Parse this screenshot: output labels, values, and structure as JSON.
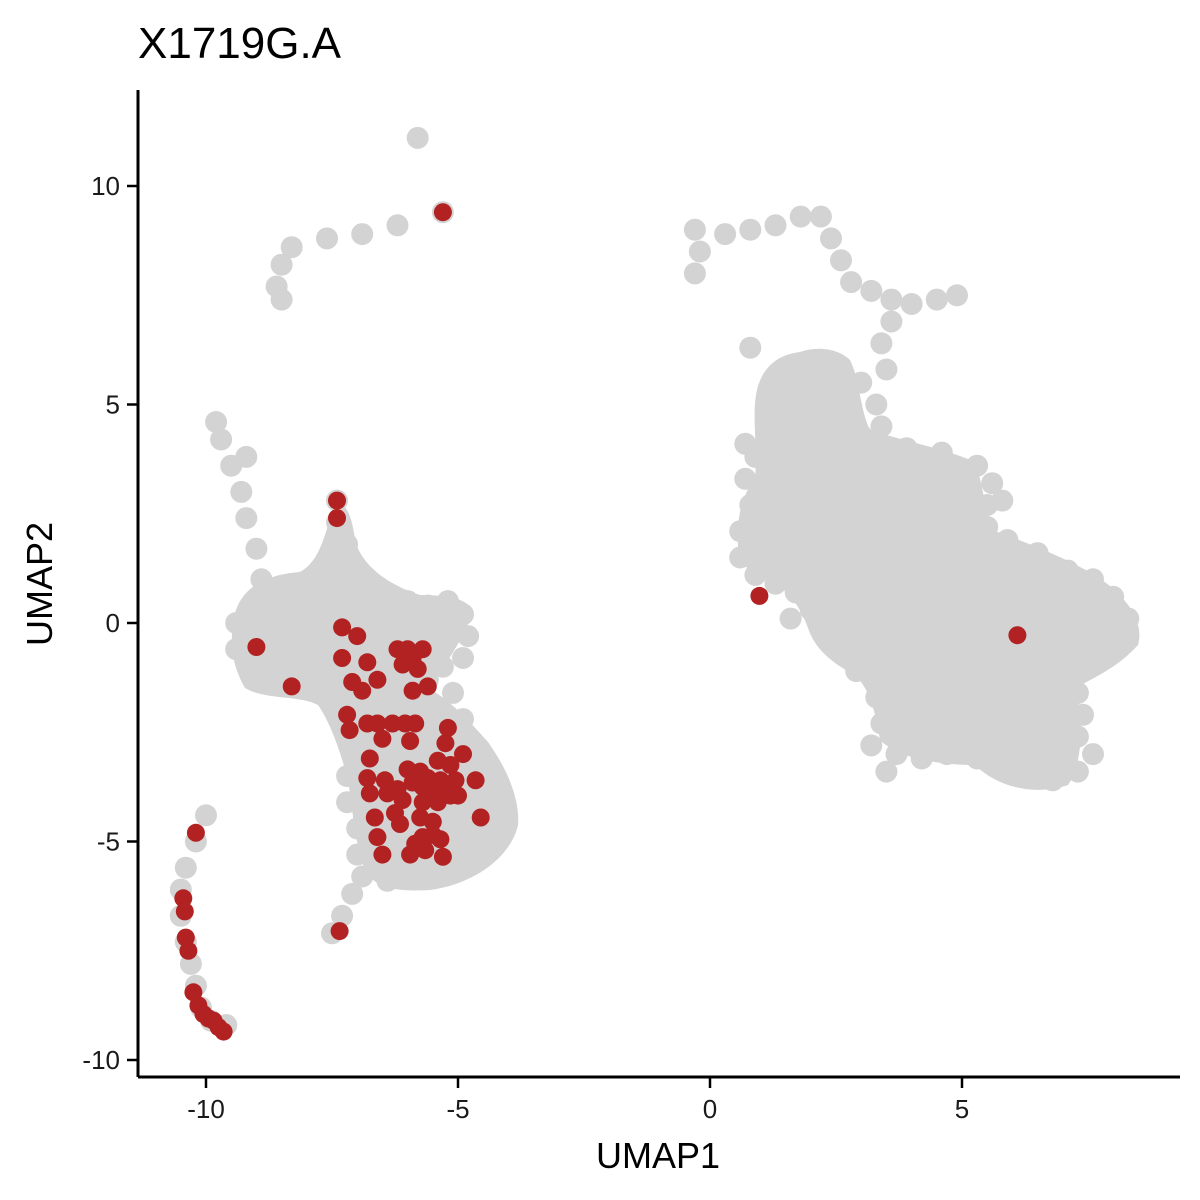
{
  "chart_data": {
    "type": "scatter",
    "title": "X1719G.A",
    "xlabel": "UMAP1",
    "ylabel": "UMAP2",
    "xlim": [
      -11.4,
      9.2
    ],
    "ylim": [
      -10.3,
      12.1
    ],
    "x_ticks": [
      -10,
      -5,
      0,
      5
    ],
    "x_tick_labels": [
      "-10",
      "-5",
      "0",
      "5"
    ],
    "y_ticks": [
      -10,
      -5,
      0,
      5,
      10
    ],
    "y_tick_labels": [
      "-10",
      "-5",
      "0",
      "5",
      "10"
    ],
    "grid": false,
    "legend": "none",
    "colors": {
      "background_cells": "#d3d3d3",
      "highlighted_cells": "#b22222"
    },
    "series": [
      {
        "role": "background",
        "points": [
          [
            -5.8,
            11.1
          ],
          [
            -5.3,
            9.4
          ],
          [
            -6.2,
            9.1
          ],
          [
            -6.9,
            8.9
          ],
          [
            -7.6,
            8.8
          ],
          [
            -8.3,
            8.6
          ],
          [
            -8.5,
            8.2
          ],
          [
            -8.6,
            7.7
          ],
          [
            -8.5,
            7.4
          ],
          [
            -9.8,
            4.6
          ],
          [
            -9.7,
            4.2
          ],
          [
            -9.5,
            3.6
          ],
          [
            -9.3,
            3.0
          ],
          [
            -9.2,
            2.4
          ],
          [
            -9.0,
            1.7
          ],
          [
            -8.9,
            1.0
          ],
          [
            -9.2,
            3.8
          ],
          [
            -7.4,
            2.8
          ],
          [
            -7.4,
            2.3
          ],
          [
            -7.2,
            1.8
          ],
          [
            -7.0,
            1.2
          ],
          [
            -7.0,
            0.6
          ],
          [
            -9.4,
            0.0
          ],
          [
            -9.4,
            -0.6
          ],
          [
            -9.0,
            0.2
          ],
          [
            -8.6,
            0.4
          ],
          [
            -8.3,
            -0.2
          ],
          [
            -8.0,
            0.4
          ],
          [
            -8.7,
            -1.2
          ],
          [
            -9.2,
            -0.9
          ],
          [
            -7.8,
            -0.9
          ],
          [
            -7.6,
            0.5
          ],
          [
            -7.2,
            -0.3
          ],
          [
            -6.8,
            0.4
          ],
          [
            -6.4,
            0.2
          ],
          [
            -6.0,
            0.5
          ],
          [
            -5.6,
            0.4
          ],
          [
            -5.2,
            0.5
          ],
          [
            -4.9,
            0.2
          ],
          [
            -4.8,
            -0.3
          ],
          [
            -4.9,
            -0.8
          ],
          [
            -5.3,
            -1.0
          ],
          [
            -5.6,
            -1.3
          ],
          [
            -5.1,
            -1.6
          ],
          [
            -4.9,
            -2.2
          ],
          [
            -5.0,
            -2.7
          ],
          [
            -5.2,
            -3.2
          ],
          [
            -4.9,
            -3.5
          ],
          [
            -4.7,
            -3.9
          ],
          [
            -4.4,
            -4.5
          ],
          [
            -4.7,
            -5.0
          ],
          [
            -4.9,
            -5.3
          ],
          [
            -5.4,
            -5.6
          ],
          [
            -5.9,
            -5.8
          ],
          [
            -6.4,
            -5.9
          ],
          [
            -6.9,
            -5.8
          ],
          [
            -7.0,
            -5.3
          ],
          [
            -7.0,
            -4.7
          ],
          [
            -7.2,
            -4.1
          ],
          [
            -7.2,
            -3.5
          ],
          [
            -7.1,
            -2.9
          ],
          [
            -7.2,
            -2.3
          ],
          [
            -7.4,
            -1.7
          ],
          [
            -6.5,
            -1.6
          ],
          [
            -6.2,
            -2.2
          ],
          [
            -6.4,
            -3.1
          ],
          [
            -6.1,
            -3.8
          ],
          [
            -6.2,
            -4.7
          ],
          [
            -5.5,
            -4.1
          ],
          [
            -5.7,
            -2.8
          ],
          [
            -6.7,
            -0.8
          ],
          [
            -6.1,
            -0.5
          ],
          [
            -6.6,
            -4.3
          ],
          [
            -5.9,
            -5.2
          ],
          [
            -5.3,
            -4.6
          ],
          [
            -6.8,
            -2.5
          ],
          [
            -5.6,
            -3.4
          ],
          [
            -7.1,
            -6.2
          ],
          [
            -7.3,
            -6.7
          ],
          [
            -7.5,
            -7.1
          ],
          [
            -10.0,
            -4.4
          ],
          [
            -10.2,
            -5.0
          ],
          [
            -10.4,
            -5.6
          ],
          [
            -10.5,
            -6.1
          ],
          [
            -10.5,
            -6.7
          ],
          [
            -10.4,
            -7.3
          ],
          [
            -10.3,
            -7.8
          ],
          [
            -10.2,
            -8.3
          ],
          [
            -10.1,
            -8.8
          ],
          [
            -9.9,
            -9.1
          ],
          [
            -9.6,
            -9.2
          ],
          [
            -0.3,
            8.0
          ],
          [
            -0.2,
            8.5
          ],
          [
            -0.3,
            9.0
          ],
          [
            0.3,
            8.9
          ],
          [
            0.8,
            9.0
          ],
          [
            1.3,
            9.1
          ],
          [
            1.8,
            9.3
          ],
          [
            2.2,
            9.3
          ],
          [
            2.4,
            8.8
          ],
          [
            2.6,
            8.3
          ],
          [
            2.8,
            7.8
          ],
          [
            3.2,
            7.6
          ],
          [
            3.6,
            7.4
          ],
          [
            4.0,
            7.3
          ],
          [
            4.5,
            7.4
          ],
          [
            4.9,
            7.5
          ],
          [
            3.6,
            6.9
          ],
          [
            3.4,
            6.4
          ],
          [
            3.5,
            5.8
          ],
          [
            3.0,
            5.5
          ],
          [
            2.5,
            5.9
          ],
          [
            2.0,
            5.8
          ],
          [
            1.8,
            5.2
          ],
          [
            1.5,
            4.8
          ],
          [
            1.2,
            4.4
          ],
          [
            0.8,
            6.3
          ],
          [
            0.9,
            3.8
          ],
          [
            0.7,
            3.3
          ],
          [
            1.3,
            3.5
          ],
          [
            1.8,
            4.0
          ],
          [
            2.3,
            4.6
          ],
          [
            3.0,
            4.3
          ],
          [
            3.9,
            4.0
          ],
          [
            4.6,
            3.9
          ],
          [
            5.3,
            3.6
          ],
          [
            5.6,
            3.2
          ],
          [
            5.8,
            2.8
          ],
          [
            5.5,
            2.2
          ],
          [
            5.9,
            1.9
          ],
          [
            6.5,
            1.6
          ],
          [
            7.1,
            1.2
          ],
          [
            7.6,
            1.0
          ],
          [
            8.0,
            0.6
          ],
          [
            8.3,
            0.1
          ],
          [
            8.2,
            -0.4
          ],
          [
            7.8,
            -0.8
          ],
          [
            7.4,
            -1.1
          ],
          [
            7.3,
            -1.6
          ],
          [
            7.4,
            -2.1
          ],
          [
            7.3,
            -2.6
          ],
          [
            7.6,
            -3.0
          ],
          [
            7.3,
            -3.4
          ],
          [
            6.8,
            -3.6
          ],
          [
            6.3,
            -3.5
          ],
          [
            5.8,
            -3.3
          ],
          [
            5.3,
            -3.1
          ],
          [
            4.7,
            -3.0
          ],
          [
            4.2,
            -3.1
          ],
          [
            3.7,
            -3.0
          ],
          [
            3.2,
            -2.8
          ],
          [
            3.4,
            -2.3
          ],
          [
            3.3,
            -1.7
          ],
          [
            2.9,
            -1.1
          ],
          [
            2.5,
            -0.6
          ],
          [
            2.2,
            -0.1
          ],
          [
            2.0,
            0.3
          ],
          [
            1.7,
            0.7
          ],
          [
            1.3,
            0.9
          ],
          [
            0.9,
            1.1
          ],
          [
            0.6,
            1.5
          ],
          [
            0.6,
            2.1
          ],
          [
            0.8,
            2.7
          ],
          [
            1.6,
            1.5
          ],
          [
            2.4,
            2.3
          ],
          [
            3.1,
            3.1
          ],
          [
            3.8,
            2.4
          ],
          [
            4.3,
            1.6
          ],
          [
            4.8,
            0.9
          ],
          [
            5.4,
            0.4
          ],
          [
            6.0,
            -0.1
          ],
          [
            6.6,
            -0.6
          ],
          [
            5.9,
            -1.3
          ],
          [
            5.2,
            -1.9
          ],
          [
            4.5,
            -2.4
          ],
          [
            3.8,
            -1.8
          ],
          [
            4.1,
            -0.9
          ],
          [
            3.4,
            -0.2
          ],
          [
            2.8,
            0.8
          ],
          [
            3.7,
            1.1
          ],
          [
            4.5,
            2.7
          ],
          [
            2.1,
            3.3
          ],
          [
            1.6,
            2.6
          ],
          [
            6.9,
            0.3
          ],
          [
            7.1,
            -0.3
          ],
          [
            1.6,
            0.1
          ],
          [
            3.3,
            5.0
          ],
          [
            3.4,
            4.5
          ],
          [
            2.6,
            3.9
          ],
          [
            0.7,
            4.1
          ],
          [
            5.5,
            2.7
          ],
          [
            3.5,
            -3.4
          ]
        ]
      },
      {
        "role": "highlight",
        "points": [
          [
            -5.3,
            9.4
          ],
          [
            -7.4,
            2.8
          ],
          [
            -7.4,
            2.4
          ],
          [
            -9.0,
            -0.55
          ],
          [
            -8.3,
            -1.45
          ],
          [
            -7.3,
            -0.1
          ],
          [
            -7.0,
            -0.3
          ],
          [
            -7.3,
            -0.8
          ],
          [
            -6.8,
            -0.9
          ],
          [
            -7.1,
            -1.35
          ],
          [
            -6.6,
            -1.3
          ],
          [
            -6.9,
            -1.55
          ],
          [
            -6.2,
            -0.6
          ],
          [
            -6.0,
            -0.6
          ],
          [
            -5.7,
            -0.6
          ],
          [
            -5.9,
            -0.8
          ],
          [
            -6.1,
            -0.95
          ],
          [
            -5.8,
            -1.05
          ],
          [
            -5.6,
            -1.45
          ],
          [
            -5.9,
            -1.55
          ],
          [
            -7.2,
            -2.1
          ],
          [
            -7.15,
            -2.45
          ],
          [
            -6.8,
            -2.3
          ],
          [
            -6.6,
            -2.3
          ],
          [
            -6.3,
            -2.3
          ],
          [
            -6.05,
            -2.3
          ],
          [
            -5.85,
            -2.3
          ],
          [
            -6.5,
            -2.65
          ],
          [
            -5.95,
            -2.7
          ],
          [
            -5.2,
            -2.4
          ],
          [
            -5.25,
            -2.75
          ],
          [
            -4.9,
            -3.0
          ],
          [
            -5.4,
            -3.15
          ],
          [
            -5.15,
            -3.25
          ],
          [
            -6.75,
            -3.1
          ],
          [
            -6.8,
            -3.55
          ],
          [
            -6.45,
            -3.6
          ],
          [
            -6.0,
            -3.35
          ],
          [
            -5.75,
            -3.4
          ],
          [
            -6.75,
            -3.9
          ],
          [
            -6.4,
            -3.9
          ],
          [
            -6.2,
            -3.8
          ],
          [
            -5.9,
            -3.65
          ],
          [
            -5.6,
            -3.55
          ],
          [
            -5.35,
            -3.6
          ],
          [
            -5.7,
            -3.75
          ],
          [
            -5.55,
            -3.85
          ],
          [
            -5.45,
            -3.95
          ],
          [
            -5.25,
            -3.85
          ],
          [
            -5.05,
            -3.6
          ],
          [
            -5.15,
            -3.95
          ],
          [
            -6.1,
            -4.05
          ],
          [
            -5.7,
            -4.1
          ],
          [
            -5.4,
            -4.1
          ],
          [
            -4.65,
            -3.6
          ],
          [
            -5.0,
            -3.95
          ],
          [
            -6.65,
            -4.45
          ],
          [
            -6.25,
            -4.35
          ],
          [
            -6.15,
            -4.6
          ],
          [
            -5.75,
            -4.45
          ],
          [
            -5.5,
            -4.55
          ],
          [
            -4.55,
            -4.45
          ],
          [
            -6.6,
            -4.9
          ],
          [
            -5.7,
            -4.9
          ],
          [
            -5.5,
            -4.85
          ],
          [
            -5.85,
            -5.05
          ],
          [
            -5.35,
            -4.95
          ],
          [
            -5.65,
            -5.2
          ],
          [
            -6.5,
            -5.3
          ],
          [
            -5.95,
            -5.3
          ],
          [
            -5.3,
            -5.35
          ],
          [
            -7.35,
            -7.05
          ],
          [
            -10.2,
            -4.8
          ],
          [
            -10.45,
            -6.3
          ],
          [
            -10.42,
            -6.6
          ],
          [
            -10.4,
            -7.2
          ],
          [
            -10.35,
            -7.5
          ],
          [
            -10.25,
            -8.45
          ],
          [
            -10.15,
            -8.75
          ],
          [
            -10.05,
            -8.95
          ],
          [
            -9.95,
            -9.05
          ],
          [
            -9.85,
            -9.1
          ],
          [
            -9.75,
            -9.25
          ],
          [
            -9.65,
            -9.35
          ],
          [
            0.98,
            0.62
          ],
          [
            6.1,
            -0.28
          ]
        ]
      }
    ]
  }
}
